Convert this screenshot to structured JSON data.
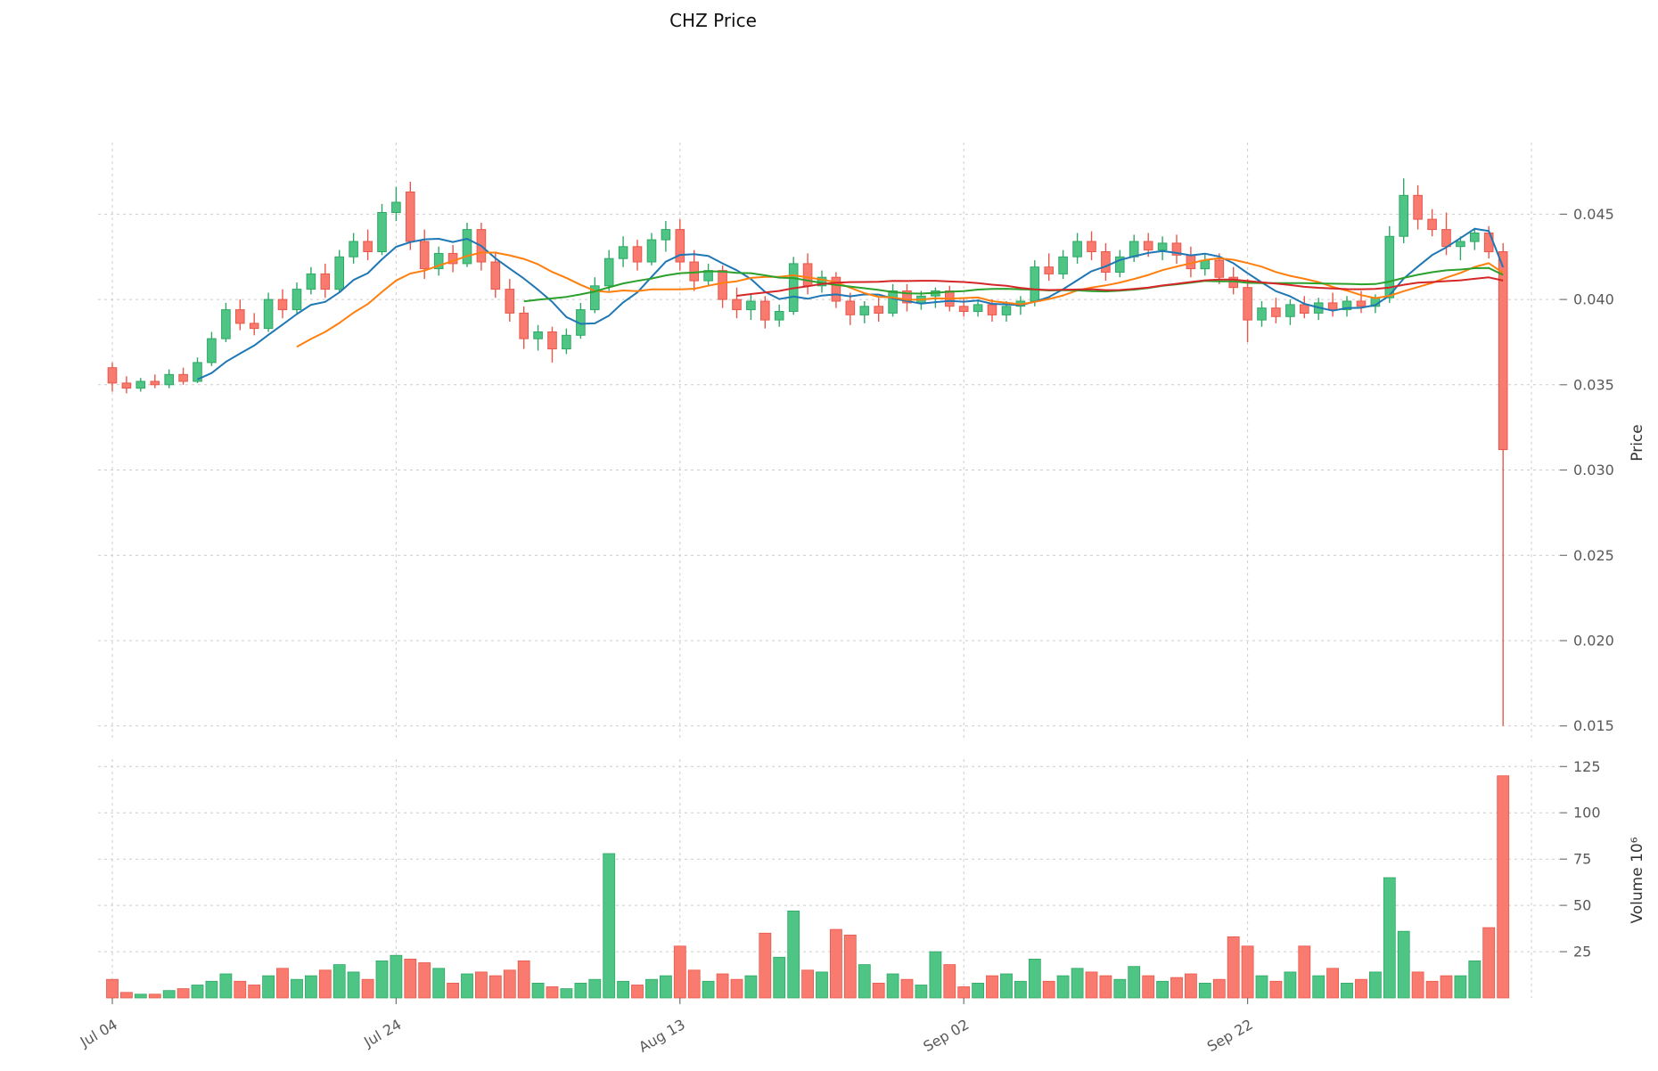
{
  "chart_data": {
    "type": "candlestick",
    "title": "CHZ Price",
    "ylabel": "Price",
    "volume_ylabel": "Volume  10⁶",
    "x_tick_labels": [
      "Jul 04",
      "Jul 24",
      "Aug 13",
      "Sep 02",
      "Sep 22"
    ],
    "x_tick_indices": [
      0,
      20,
      40,
      60,
      80
    ],
    "x_grid_extra": [
      100
    ],
    "price_ticks": [
      0.015,
      0.02,
      0.025,
      0.03,
      0.035,
      0.04,
      0.045
    ],
    "volume_ticks": [
      25,
      50,
      75,
      100,
      125
    ],
    "price_ylim": [
      0.0142,
      0.0492
    ],
    "volume_ylim": [
      0,
      129
    ],
    "ma_windows": [
      7,
      14,
      30,
      45
    ],
    "ma_colors": [
      "#1f77b4",
      "#ff7f0e",
      "#2ca02c",
      "#d62728"
    ],
    "up_color": "#4ec584",
    "up_edge": "#2fa866",
    "down_color": "#f97b70",
    "down_edge": "#e8574a",
    "grid_on": true,
    "legend": "none",
    "y_axis_side": "right",
    "candles": [
      [
        "Jul 04",
        0.036,
        0.0363,
        0.0346,
        0.0351,
        10
      ],
      [
        "Jul 05",
        0.0351,
        0.0355,
        0.0345,
        0.0348,
        3
      ],
      [
        "Jul 06",
        0.0348,
        0.0354,
        0.0346,
        0.0352,
        2
      ],
      [
        "Jul 07",
        0.0352,
        0.0356,
        0.0348,
        0.035,
        2
      ],
      [
        "Jul 08",
        0.035,
        0.0359,
        0.0348,
        0.0356,
        4
      ],
      [
        "Jul 09",
        0.0356,
        0.036,
        0.035,
        0.0352,
        5
      ],
      [
        "Jul 10",
        0.0352,
        0.0366,
        0.0351,
        0.0363,
        7
      ],
      [
        "Jul 11",
        0.0363,
        0.0381,
        0.0361,
        0.0377,
        9
      ],
      [
        "Jul 12",
        0.0377,
        0.0398,
        0.0375,
        0.0394,
        13
      ],
      [
        "Jul 13",
        0.0394,
        0.04,
        0.0382,
        0.0386,
        9
      ],
      [
        "Jul 14",
        0.0386,
        0.0392,
        0.0379,
        0.0383,
        7
      ],
      [
        "Jul 15",
        0.0383,
        0.0404,
        0.0381,
        0.04,
        12
      ],
      [
        "Jul 16",
        0.04,
        0.0406,
        0.0389,
        0.0394,
        16
      ],
      [
        "Jul 17",
        0.0394,
        0.041,
        0.0392,
        0.0406,
        10
      ],
      [
        "Jul 18",
        0.0406,
        0.0419,
        0.0403,
        0.0415,
        12
      ],
      [
        "Jul 19",
        0.0415,
        0.0421,
        0.0401,
        0.0406,
        15
      ],
      [
        "Jul 20",
        0.0406,
        0.0429,
        0.0404,
        0.0425,
        18
      ],
      [
        "Jul 21",
        0.0425,
        0.0439,
        0.0421,
        0.0434,
        14
      ],
      [
        "Jul 22",
        0.0434,
        0.0441,
        0.0423,
        0.0428,
        10
      ],
      [
        "Jul 23",
        0.0428,
        0.0456,
        0.0426,
        0.0451,
        20
      ],
      [
        "Jul 24",
        0.0451,
        0.0466,
        0.0446,
        0.0457,
        23
      ],
      [
        "Jul 25",
        0.0463,
        0.0469,
        0.0429,
        0.0434,
        21
      ],
      [
        "Jul 26",
        0.0434,
        0.0441,
        0.0412,
        0.0418,
        19
      ],
      [
        "Jul 27",
        0.0418,
        0.0431,
        0.0414,
        0.0427,
        16
      ],
      [
        "Jul 28",
        0.0427,
        0.0432,
        0.0416,
        0.0421,
        8
      ],
      [
        "Jul 29",
        0.0421,
        0.0445,
        0.0419,
        0.0441,
        13
      ],
      [
        "Jul 30",
        0.0441,
        0.0445,
        0.0417,
        0.0422,
        14
      ],
      [
        "Jul 31",
        0.0422,
        0.0428,
        0.0401,
        0.0406,
        12
      ],
      [
        "Aug 01",
        0.0406,
        0.0412,
        0.0387,
        0.0392,
        15
      ],
      [
        "Aug 02",
        0.0392,
        0.0396,
        0.0371,
        0.0377,
        20
      ],
      [
        "Aug 03",
        0.0377,
        0.0385,
        0.037,
        0.0381,
        8
      ],
      [
        "Aug 04",
        0.0381,
        0.0384,
        0.0363,
        0.0371,
        6
      ],
      [
        "Aug 05",
        0.0371,
        0.0383,
        0.0368,
        0.0379,
        5
      ],
      [
        "Aug 06",
        0.0379,
        0.0398,
        0.0377,
        0.0394,
        8
      ],
      [
        "Aug 07",
        0.0394,
        0.0413,
        0.0392,
        0.0408,
        10
      ],
      [
        "Aug 08",
        0.0408,
        0.0429,
        0.0405,
        0.0424,
        78
      ],
      [
        "Aug 09",
        0.0424,
        0.0437,
        0.0419,
        0.0431,
        9
      ],
      [
        "Aug 10",
        0.0431,
        0.0435,
        0.0417,
        0.0422,
        7
      ],
      [
        "Aug 11",
        0.0422,
        0.0439,
        0.042,
        0.0435,
        10
      ],
      [
        "Aug 12",
        0.0435,
        0.0446,
        0.0428,
        0.0441,
        12
      ],
      [
        "Aug 13",
        0.0441,
        0.0447,
        0.0417,
        0.0422,
        28
      ],
      [
        "Aug 14",
        0.0422,
        0.0429,
        0.0405,
        0.0411,
        15
      ],
      [
        "Aug 15",
        0.0411,
        0.0421,
        0.0408,
        0.0417,
        9
      ],
      [
        "Aug 16",
        0.0417,
        0.042,
        0.0395,
        0.04,
        13
      ],
      [
        "Aug 17",
        0.04,
        0.0407,
        0.0389,
        0.0394,
        10
      ],
      [
        "Aug 18",
        0.0394,
        0.0403,
        0.0388,
        0.0399,
        12
      ],
      [
        "Aug 19",
        0.0399,
        0.0402,
        0.0383,
        0.0388,
        35
      ],
      [
        "Aug 20",
        0.0388,
        0.0397,
        0.0384,
        0.0393,
        22
      ],
      [
        "Aug 21",
        0.0393,
        0.0425,
        0.0391,
        0.0421,
        47
      ],
      [
        "Aug 22",
        0.0421,
        0.0427,
        0.0403,
        0.0408,
        15
      ],
      [
        "Aug 23",
        0.0408,
        0.0417,
        0.0404,
        0.0413,
        14
      ],
      [
        "Aug 24",
        0.0413,
        0.0416,
        0.0395,
        0.0399,
        37
      ],
      [
        "Aug 25",
        0.0399,
        0.0404,
        0.0385,
        0.0391,
        34
      ],
      [
        "Aug 26",
        0.0391,
        0.0399,
        0.0386,
        0.0396,
        18
      ],
      [
        "Aug 27",
        0.0396,
        0.0401,
        0.0387,
        0.0392,
        8
      ],
      [
        "Aug 28",
        0.0392,
        0.0409,
        0.039,
        0.0405,
        13
      ],
      [
        "Aug 29",
        0.0405,
        0.0409,
        0.0393,
        0.0398,
        10
      ],
      [
        "Aug 30",
        0.0398,
        0.0405,
        0.0394,
        0.0402,
        7
      ],
      [
        "Aug 31",
        0.0402,
        0.0407,
        0.0395,
        0.0405,
        25
      ],
      [
        "Sep 01",
        0.0405,
        0.0408,
        0.0393,
        0.0396,
        18
      ],
      [
        "Sep 02",
        0.0396,
        0.0401,
        0.039,
        0.0393,
        6
      ],
      [
        "Sep 03",
        0.0393,
        0.04,
        0.039,
        0.0397,
        8
      ],
      [
        "Sep 04",
        0.0397,
        0.04,
        0.0387,
        0.0391,
        12
      ],
      [
        "Sep 05",
        0.0391,
        0.0399,
        0.0387,
        0.0396,
        13
      ],
      [
        "Sep 06",
        0.0396,
        0.0402,
        0.0391,
        0.0399,
        9
      ],
      [
        "Sep 07",
        0.0399,
        0.0423,
        0.0396,
        0.0419,
        21
      ],
      [
        "Sep 08",
        0.0419,
        0.0427,
        0.0411,
        0.0415,
        9
      ],
      [
        "Sep 09",
        0.0415,
        0.0429,
        0.0412,
        0.0425,
        12
      ],
      [
        "Sep 10",
        0.0425,
        0.0439,
        0.0421,
        0.0434,
        16
      ],
      [
        "Sep 11",
        0.0434,
        0.044,
        0.0423,
        0.0428,
        14
      ],
      [
        "Sep 12",
        0.0428,
        0.0433,
        0.0411,
        0.0416,
        12
      ],
      [
        "Sep 13",
        0.0416,
        0.0429,
        0.0413,
        0.0425,
        10
      ],
      [
        "Sep 14",
        0.0425,
        0.0438,
        0.0422,
        0.0434,
        17
      ],
      [
        "Sep 15",
        0.0434,
        0.0439,
        0.0425,
        0.0429,
        12
      ],
      [
        "Sep 16",
        0.0429,
        0.0437,
        0.0423,
        0.0433,
        9
      ],
      [
        "Sep 17",
        0.0433,
        0.0438,
        0.0421,
        0.0426,
        11
      ],
      [
        "Sep 18",
        0.0426,
        0.0431,
        0.0413,
        0.0418,
        13
      ],
      [
        "Sep 19",
        0.0418,
        0.0427,
        0.0414,
        0.0423,
        8
      ],
      [
        "Sep 20",
        0.0423,
        0.0427,
        0.0409,
        0.0413,
        10
      ],
      [
        "Sep 21",
        0.0413,
        0.0419,
        0.0403,
        0.0407,
        33
      ],
      [
        "Sep 22",
        0.0407,
        0.0412,
        0.0375,
        0.0388,
        28
      ],
      [
        "Sep 23",
        0.0388,
        0.0399,
        0.0384,
        0.0395,
        12
      ],
      [
        "Sep 24",
        0.0395,
        0.0401,
        0.0386,
        0.039,
        9
      ],
      [
        "Sep 25",
        0.039,
        0.04,
        0.0385,
        0.0397,
        14
      ],
      [
        "Sep 26",
        0.0397,
        0.0402,
        0.0389,
        0.0392,
        28
      ],
      [
        "Sep 27",
        0.0392,
        0.0401,
        0.0388,
        0.0398,
        12
      ],
      [
        "Sep 28",
        0.0398,
        0.0404,
        0.039,
        0.0394,
        16
      ],
      [
        "Sep 29",
        0.0394,
        0.0402,
        0.039,
        0.0399,
        8
      ],
      [
        "Sep 30",
        0.0399,
        0.0405,
        0.0392,
        0.0396,
        10
      ],
      [
        "Oct 01",
        0.0396,
        0.0403,
        0.0392,
        0.0401,
        14
      ],
      [
        "Oct 02",
        0.0401,
        0.0443,
        0.0398,
        0.0437,
        65
      ],
      [
        "Oct 03",
        0.0437,
        0.0471,
        0.0433,
        0.0461,
        36
      ],
      [
        "Oct 04",
        0.0461,
        0.0467,
        0.0441,
        0.0447,
        14
      ],
      [
        "Oct 05",
        0.0447,
        0.0453,
        0.0437,
        0.0441,
        9
      ],
      [
        "Oct 06",
        0.0441,
        0.0451,
        0.0426,
        0.0431,
        12
      ],
      [
        "Oct 07",
        0.0431,
        0.0437,
        0.0423,
        0.0434,
        12
      ],
      [
        "Oct 08",
        0.0434,
        0.0442,
        0.0429,
        0.0439,
        20
      ],
      [
        "Oct 09",
        0.0439,
        0.0443,
        0.0424,
        0.0428,
        38
      ],
      [
        "Oct 10",
        0.0428,
        0.0433,
        0.015,
        0.0312,
        120
      ]
    ]
  }
}
